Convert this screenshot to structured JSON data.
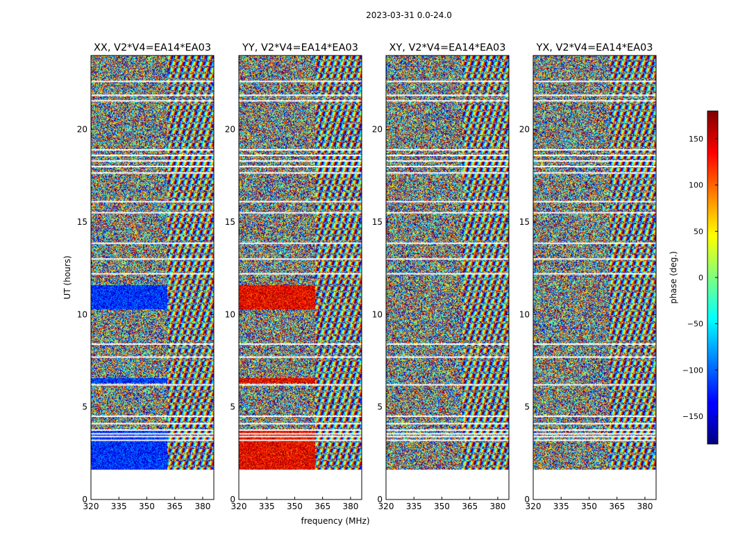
{
  "chart_data": {
    "type": "heatmap",
    "suptitle": "2023-03-31 0.0-24.0",
    "xlabel": "frequency (MHz)",
    "ylabel": "UT (hours)",
    "xlim": [
      320,
      386
    ],
    "ylim": [
      0,
      24
    ],
    "xticks": [
      320,
      335,
      350,
      365,
      380
    ],
    "yticks": [
      0,
      5,
      10,
      15,
      20
    ],
    "data_range_hours": [
      1.6,
      24.0
    ],
    "freq_split_mhz": 361,
    "panels": [
      {
        "title": "XX, V2*V4=EA14*EA03",
        "coherent_phase_deg": -120
      },
      {
        "title": "YY, V2*V4=EA14*EA03",
        "coherent_phase_deg": 140
      },
      {
        "title": "XY, V2*V4=EA14*EA03",
        "coherent_phase_deg": null
      },
      {
        "title": "YX, V2*V4=EA14*EA03",
        "coherent_phase_deg": null
      }
    ],
    "colorbar": {
      "label": "phase (deg.)",
      "range": [
        -180,
        180
      ],
      "ticks": [
        -150,
        -100,
        -50,
        0,
        50,
        100,
        150
      ],
      "tick_labels": [
        "−150",
        "−100",
        "−50",
        "0",
        "50",
        "100",
        "150"
      ],
      "colormap": "jet"
    },
    "flagged_hours": [
      3.2,
      3.4,
      3.55,
      3.75,
      4.1,
      4.5,
      6.2,
      7.7,
      8.4,
      12.2,
      13.0,
      13.85,
      15.5,
      16.1,
      17.65,
      18.0,
      18.3,
      18.6,
      18.9,
      21.55,
      21.85,
      22.6
    ]
  }
}
